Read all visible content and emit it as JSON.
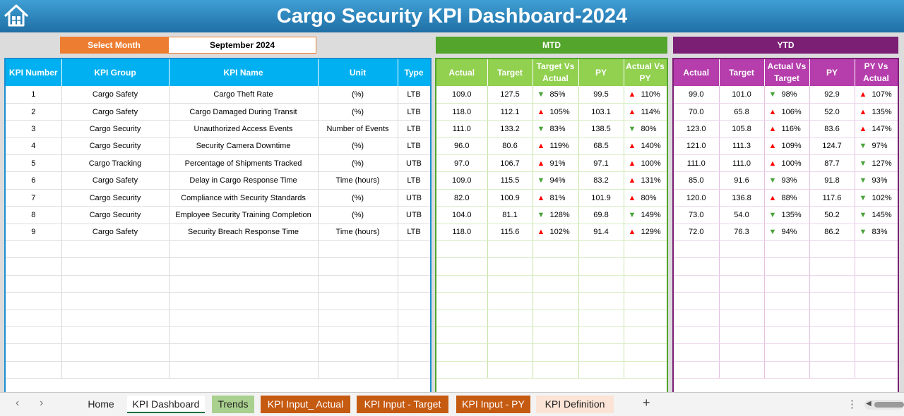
{
  "app": {
    "title": "Cargo Security KPI Dashboard-2024",
    "home_icon": "home-icon"
  },
  "selector": {
    "label": "Select Month",
    "value": "September 2024"
  },
  "sections": {
    "mtd": "MTD",
    "ytd": "YTD"
  },
  "colors": {
    "title_bar": "#2e86c1",
    "select_label": "#ed7d31",
    "left_header": "#00b0f0",
    "mtd_section": "#53a52c",
    "mtd_header": "#92d050",
    "ytd_section": "#7b1f75",
    "ytd_header": "#b53dac",
    "arrow_up": "#ff0000",
    "arrow_down": "#4aa33a"
  },
  "left_table": {
    "headers": [
      "KPI Number",
      "KPI Group",
      "KPI Name",
      "Unit",
      "Type"
    ]
  },
  "mtd_table": {
    "headers": [
      "Actual",
      "Target",
      "Target Vs Actual",
      "PY",
      "Actual Vs PY"
    ]
  },
  "ytd_table": {
    "headers": [
      "Actual",
      "Target",
      "Actual Vs Target",
      "PY",
      "PY Vs Actual"
    ]
  },
  "arrows": {
    "up": "▲",
    "down": "▼"
  },
  "rows": [
    {
      "kpi_number": "1",
      "kpi_group": "Cargo Safety",
      "kpi_name": "Cargo Theft Rate",
      "unit": "(%)",
      "type": "LTB",
      "mtd": {
        "actual": "109.0",
        "target": "127.5",
        "tva_dir": "down",
        "tva": "85%",
        "py": "99.5",
        "avp_dir": "up",
        "avp": "110%"
      },
      "ytd": {
        "actual": "99.0",
        "target": "101.0",
        "avt_dir": "down",
        "avt": "98%",
        "py": "92.9",
        "pva_dir": "up",
        "pva": "107%"
      }
    },
    {
      "kpi_number": "2",
      "kpi_group": "Cargo Safety",
      "kpi_name": "Cargo Damaged During Transit",
      "unit": "(%)",
      "type": "LTB",
      "mtd": {
        "actual": "118.0",
        "target": "112.1",
        "tva_dir": "up",
        "tva": "105%",
        "py": "103.1",
        "avp_dir": "up",
        "avp": "114%"
      },
      "ytd": {
        "actual": "70.0",
        "target": "65.8",
        "avt_dir": "up",
        "avt": "106%",
        "py": "52.0",
        "pva_dir": "up",
        "pva": "135%"
      }
    },
    {
      "kpi_number": "3",
      "kpi_group": "Cargo Security",
      "kpi_name": "Unauthorized Access Events",
      "unit": "Number of Events",
      "type": "LTB",
      "mtd": {
        "actual": "111.0",
        "target": "133.2",
        "tva_dir": "down",
        "tva": "83%",
        "py": "138.5",
        "avp_dir": "down",
        "avp": "80%"
      },
      "ytd": {
        "actual": "123.0",
        "target": "105.8",
        "avt_dir": "up",
        "avt": "116%",
        "py": "83.6",
        "pva_dir": "up",
        "pva": "147%"
      }
    },
    {
      "kpi_number": "4",
      "kpi_group": "Cargo Security",
      "kpi_name": "Security Camera Downtime",
      "unit": "(%)",
      "type": "LTB",
      "mtd": {
        "actual": "96.0",
        "target": "80.6",
        "tva_dir": "up",
        "tva": "119%",
        "py": "68.5",
        "avp_dir": "up",
        "avp": "140%"
      },
      "ytd": {
        "actual": "121.0",
        "target": "111.3",
        "avt_dir": "up",
        "avt": "109%",
        "py": "124.7",
        "pva_dir": "down",
        "pva": "97%"
      }
    },
    {
      "kpi_number": "5",
      "kpi_group": "Cargo Tracking",
      "kpi_name": "Percentage of Shipments Tracked",
      "unit": "(%)",
      "type": "UTB",
      "mtd": {
        "actual": "97.0",
        "target": "106.7",
        "tva_dir": "up",
        "tva": "91%",
        "py": "97.1",
        "avp_dir": "up",
        "avp": "100%"
      },
      "ytd": {
        "actual": "111.0",
        "target": "111.0",
        "avt_dir": "up",
        "avt": "100%",
        "py": "87.7",
        "pva_dir": "down",
        "pva": "127%"
      }
    },
    {
      "kpi_number": "6",
      "kpi_group": "Cargo Safety",
      "kpi_name": "Delay in Cargo Response Time",
      "unit": "Time (hours)",
      "type": "LTB",
      "mtd": {
        "actual": "109.0",
        "target": "115.5",
        "tva_dir": "down",
        "tva": "94%",
        "py": "83.2",
        "avp_dir": "up",
        "avp": "131%"
      },
      "ytd": {
        "actual": "85.0",
        "target": "91.6",
        "avt_dir": "down",
        "avt": "93%",
        "py": "91.8",
        "pva_dir": "down",
        "pva": "93%"
      }
    },
    {
      "kpi_number": "7",
      "kpi_group": "Cargo Security",
      "kpi_name": "Compliance with Security Standards",
      "unit": "(%)",
      "type": "UTB",
      "mtd": {
        "actual": "82.0",
        "target": "100.9",
        "tva_dir": "up",
        "tva": "81%",
        "py": "101.9",
        "avp_dir": "up",
        "avp": "80%"
      },
      "ytd": {
        "actual": "120.0",
        "target": "136.8",
        "avt_dir": "up",
        "avt": "88%",
        "py": "117.6",
        "pva_dir": "down",
        "pva": "102%"
      }
    },
    {
      "kpi_number": "8",
      "kpi_group": "Cargo Security",
      "kpi_name": "Employee Security Training Completion",
      "unit": "(%)",
      "type": "UTB",
      "mtd": {
        "actual": "104.0",
        "target": "81.1",
        "tva_dir": "down",
        "tva": "128%",
        "py": "69.8",
        "avp_dir": "down",
        "avp": "149%"
      },
      "ytd": {
        "actual": "73.0",
        "target": "54.0",
        "avt_dir": "down",
        "avt": "135%",
        "py": "50.2",
        "pva_dir": "down",
        "pva": "145%"
      }
    },
    {
      "kpi_number": "9",
      "kpi_group": "Cargo Safety",
      "kpi_name": "Security Breach Response Time",
      "unit": "Time (hours)",
      "type": "LTB",
      "mtd": {
        "actual": "118.0",
        "target": "115.6",
        "tva_dir": "up",
        "tva": "102%",
        "py": "91.4",
        "avp_dir": "up",
        "avp": "129%"
      },
      "ytd": {
        "actual": "72.0",
        "target": "76.3",
        "avt_dir": "down",
        "avt": "94%",
        "py": "86.2",
        "pva_dir": "down",
        "pva": "83%"
      }
    }
  ],
  "tabs": {
    "home": "Home",
    "kpi_dashboard": "KPI Dashboard",
    "trends": "Trends",
    "kpi_input_actual": "KPI Input_ Actual",
    "kpi_input_target": "KPI Input - Target",
    "kpi_input_py": "KPI Input - PY",
    "kpi_definition": "KPI Definition",
    "add": "+",
    "more": "⋮",
    "prev": "‹",
    "next": "›"
  }
}
